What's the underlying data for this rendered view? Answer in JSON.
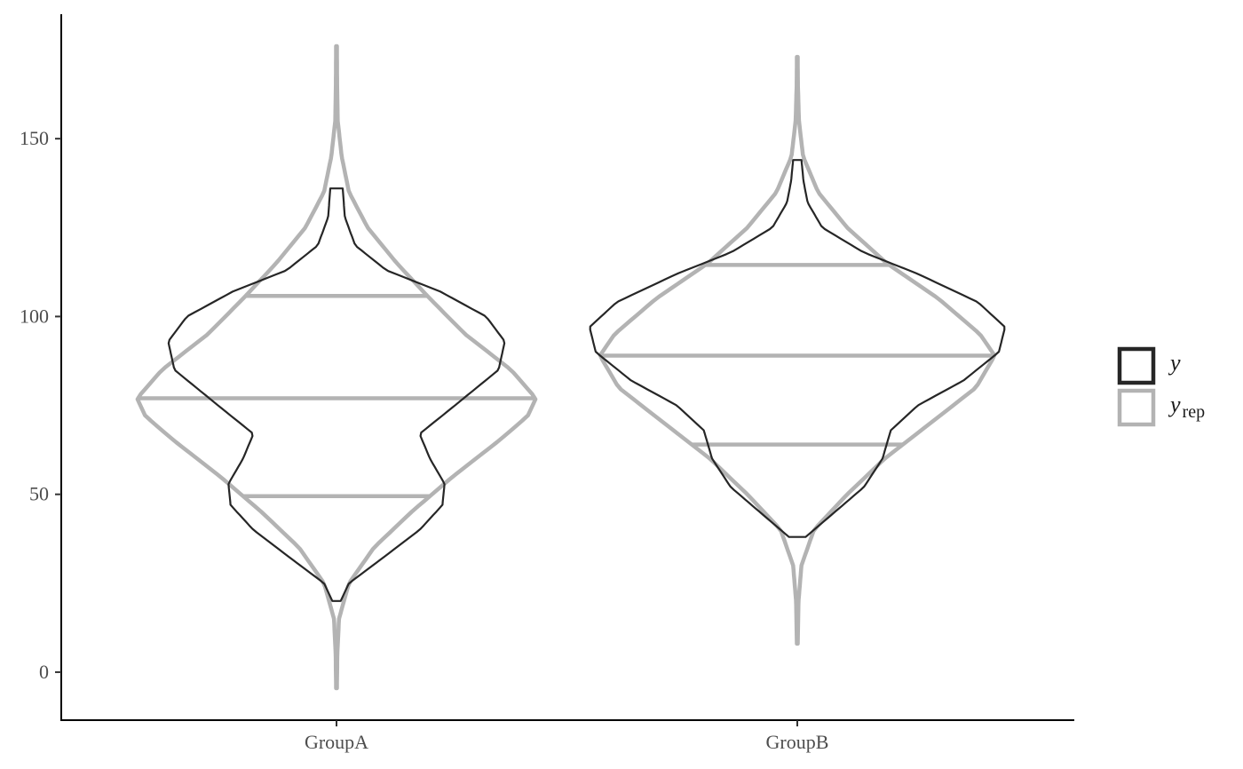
{
  "chart_data": {
    "type": "violin",
    "categories": [
      "GroupA",
      "GroupB"
    ],
    "y_ticks": [
      0,
      50,
      100,
      150
    ],
    "ylim": [
      -13.5,
      185
    ],
    "grid": false,
    "legend_position": "right",
    "colors": {
      "y": "#262626",
      "y_rep": "#b3b3b3"
    },
    "legend": [
      {
        "key": "y",
        "label": "y",
        "subscript": ""
      },
      {
        "key": "y_rep",
        "label": "y",
        "subscript": "rep"
      }
    ],
    "series": [
      {
        "key": "y_rep",
        "groups": [
          {
            "category": "GroupA",
            "range": [
              -4.5,
              176
            ],
            "quantile_lines": [
              49.5,
              77,
              105.8
            ],
            "profile": [
              [
                -4.5,
                0.002
              ],
              [
                5,
                0.004
              ],
              [
                15,
                0.012
              ],
              [
                25,
                0.06
              ],
              [
                35,
                0.18
              ],
              [
                45,
                0.36
              ],
              [
                55,
                0.56
              ],
              [
                65,
                0.78
              ],
              [
                72,
                0.92
              ],
              [
                77,
                0.96
              ],
              [
                85,
                0.84
              ],
              [
                95,
                0.62
              ],
              [
                105,
                0.45
              ],
              [
                115,
                0.29
              ],
              [
                125,
                0.15
              ],
              [
                135,
                0.06
              ],
              [
                145,
                0.025
              ],
              [
                155,
                0.006
              ],
              [
                165,
                0.003
              ],
              [
                176,
                0.002
              ]
            ]
          },
          {
            "category": "GroupB",
            "range": [
              8,
              173
            ],
            "quantile_lines": [
              64,
              89,
              114.5
            ],
            "profile": [
              [
                8,
                0.002
              ],
              [
                20,
                0.006
              ],
              [
                30,
                0.02
              ],
              [
                40,
                0.08
              ],
              [
                50,
                0.24
              ],
              [
                60,
                0.42
              ],
              [
                70,
                0.64
              ],
              [
                80,
                0.86
              ],
              [
                89,
                0.95
              ],
              [
                95,
                0.88
              ],
              [
                105,
                0.68
              ],
              [
                115,
                0.43
              ],
              [
                125,
                0.24
              ],
              [
                135,
                0.1
              ],
              [
                145,
                0.028
              ],
              [
                155,
                0.008
              ],
              [
                165,
                0.003
              ],
              [
                173,
                0.002
              ]
            ]
          }
        ]
      },
      {
        "key": "y",
        "groups": [
          {
            "category": "GroupA",
            "range": [
              20,
              136
            ],
            "profile": [
              [
                20,
                0.02
              ],
              [
                25,
                0.06
              ],
              [
                32,
                0.22
              ],
              [
                40,
                0.4
              ],
              [
                47,
                0.51
              ],
              [
                53,
                0.52
              ],
              [
                60,
                0.45
              ],
              [
                67,
                0.4
              ],
              [
                75,
                0.57
              ],
              [
                85,
                0.78
              ],
              [
                93,
                0.81
              ],
              [
                100,
                0.72
              ],
              [
                107,
                0.5
              ],
              [
                113,
                0.24
              ],
              [
                120,
                0.09
              ],
              [
                128,
                0.04
              ],
              [
                136,
                0.03
              ]
            ]
          },
          {
            "category": "GroupB",
            "range": [
              38,
              144
            ],
            "profile": [
              [
                38,
                0.04
              ],
              [
                45,
                0.18
              ],
              [
                52,
                0.32
              ],
              [
                60,
                0.41
              ],
              [
                68,
                0.45
              ],
              [
                75,
                0.58
              ],
              [
                82,
                0.8
              ],
              [
                90,
                0.97
              ],
              [
                97,
                1.0
              ],
              [
                104,
                0.87
              ],
              [
                112,
                0.58
              ],
              [
                118,
                0.32
              ],
              [
                125,
                0.12
              ],
              [
                132,
                0.05
              ],
              [
                138,
                0.03
              ],
              [
                144,
                0.02
              ]
            ]
          }
        ]
      }
    ]
  }
}
